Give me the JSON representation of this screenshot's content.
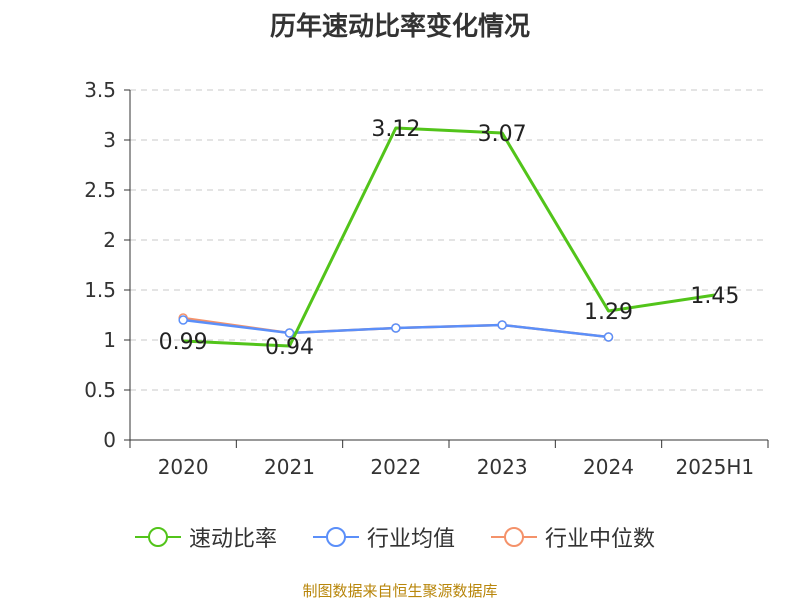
{
  "chart_data": {
    "type": "line",
    "title": "历年速动比率变化情况",
    "categories": [
      "2020",
      "2021",
      "2022",
      "2023",
      "2024",
      "2025H1"
    ],
    "ylim": [
      0,
      3.5
    ],
    "yticks": [
      "0",
      "0.5",
      "1",
      "1.5",
      "2",
      "2.5",
      "3",
      "3.5"
    ],
    "grid": true,
    "legend_position": "bottom",
    "series": [
      {
        "name": "速动比率",
        "color": "#52c41a",
        "values": [
          0.99,
          0.94,
          3.12,
          3.07,
          1.29,
          1.45
        ],
        "labels": [
          "0.99",
          "0.94",
          "3.12",
          "3.07",
          "1.29",
          "1.45"
        ]
      },
      {
        "name": "行业均值",
        "color": "#5b8ff9",
        "values": [
          1.2,
          1.07,
          1.12,
          1.15,
          1.03,
          null
        ]
      },
      {
        "name": "行业中位数",
        "color": "#f4926a",
        "values": [
          1.22,
          1.07,
          1.12,
          1.15,
          1.03,
          null
        ]
      }
    ]
  },
  "source": "制图数据来自恒生聚源数据库"
}
